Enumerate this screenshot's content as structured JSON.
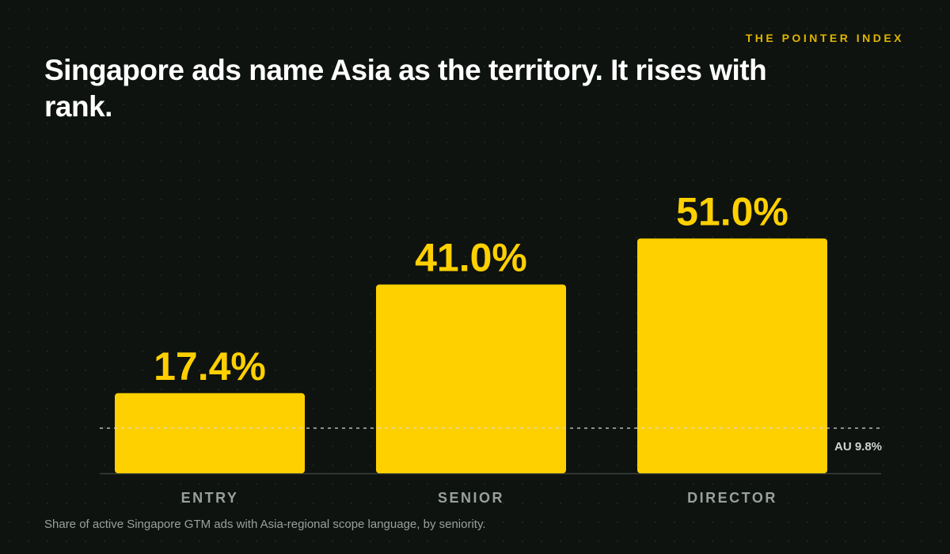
{
  "brand": "THE POINTER INDEX",
  "chart_data": {
    "type": "bar",
    "title": "Singapore ads name Asia as the territory. It rises with rank.",
    "categories": [
      "ENTRY",
      "SENIOR",
      "DIRECTOR"
    ],
    "values": [
      17.4,
      41.0,
      51.0
    ],
    "value_labels": [
      "17.4%",
      "41.0%",
      "51.0%"
    ],
    "color": "#ffd000",
    "ylim": [
      0,
      60
    ],
    "reference_line": {
      "value": 9.8,
      "label": "AU 9.8%"
    },
    "note": "Share of active Singapore GTM ads with Asia-regional scope language, by seniority."
  }
}
